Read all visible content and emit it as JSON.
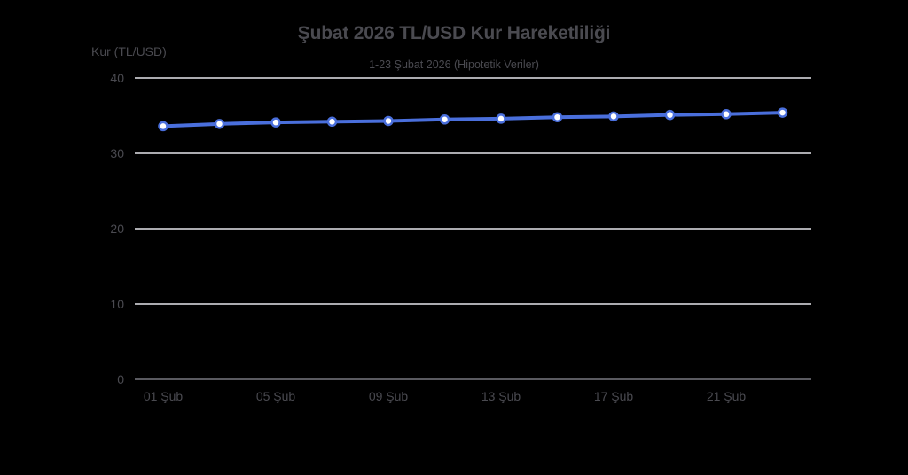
{
  "chart": {
    "title": "Şubat 2026 TL/USD Kur Hareketliliği",
    "subtitle": "1-23 Şubat 2026 (Hipotetik Veriler)",
    "y_axis_label": "Kur (TL/USD)"
  },
  "colors": {
    "background": "#000000",
    "line": "#4a6fdc",
    "marker_fill": "#ffffff",
    "gridline": "#e6e6ea",
    "axis_line": "#5a5a60",
    "text": "#4a4a50"
  },
  "chart_data": {
    "type": "line",
    "title": "Şubat 2026 TL/USD Kur Hareketliliği",
    "subtitle": "1-23 Şubat 2026 (Hipotetik Veriler)",
    "xlabel": "",
    "ylabel": "Kur (TL/USD)",
    "ylim": [
      0,
      40
    ],
    "yticks": [
      0,
      10,
      20,
      30,
      40
    ],
    "grid": true,
    "legend": "none",
    "x": [
      "01 Şub",
      "03 Şub",
      "05 Şub",
      "07 Şub",
      "09 Şub",
      "11 Şub",
      "13 Şub",
      "15 Şub",
      "17 Şub",
      "19 Şub",
      "21 Şub",
      "23 Şub"
    ],
    "xtick_labels": [
      "01 Şub",
      "05 Şub",
      "09 Şub",
      "13 Şub",
      "17 Şub",
      "21 Şub"
    ],
    "series": [
      {
        "name": "TL/USD",
        "values": [
          33.6,
          33.9,
          34.1,
          34.2,
          34.3,
          34.5,
          34.6,
          34.8,
          34.9,
          35.1,
          35.2,
          35.4
        ]
      }
    ]
  }
}
